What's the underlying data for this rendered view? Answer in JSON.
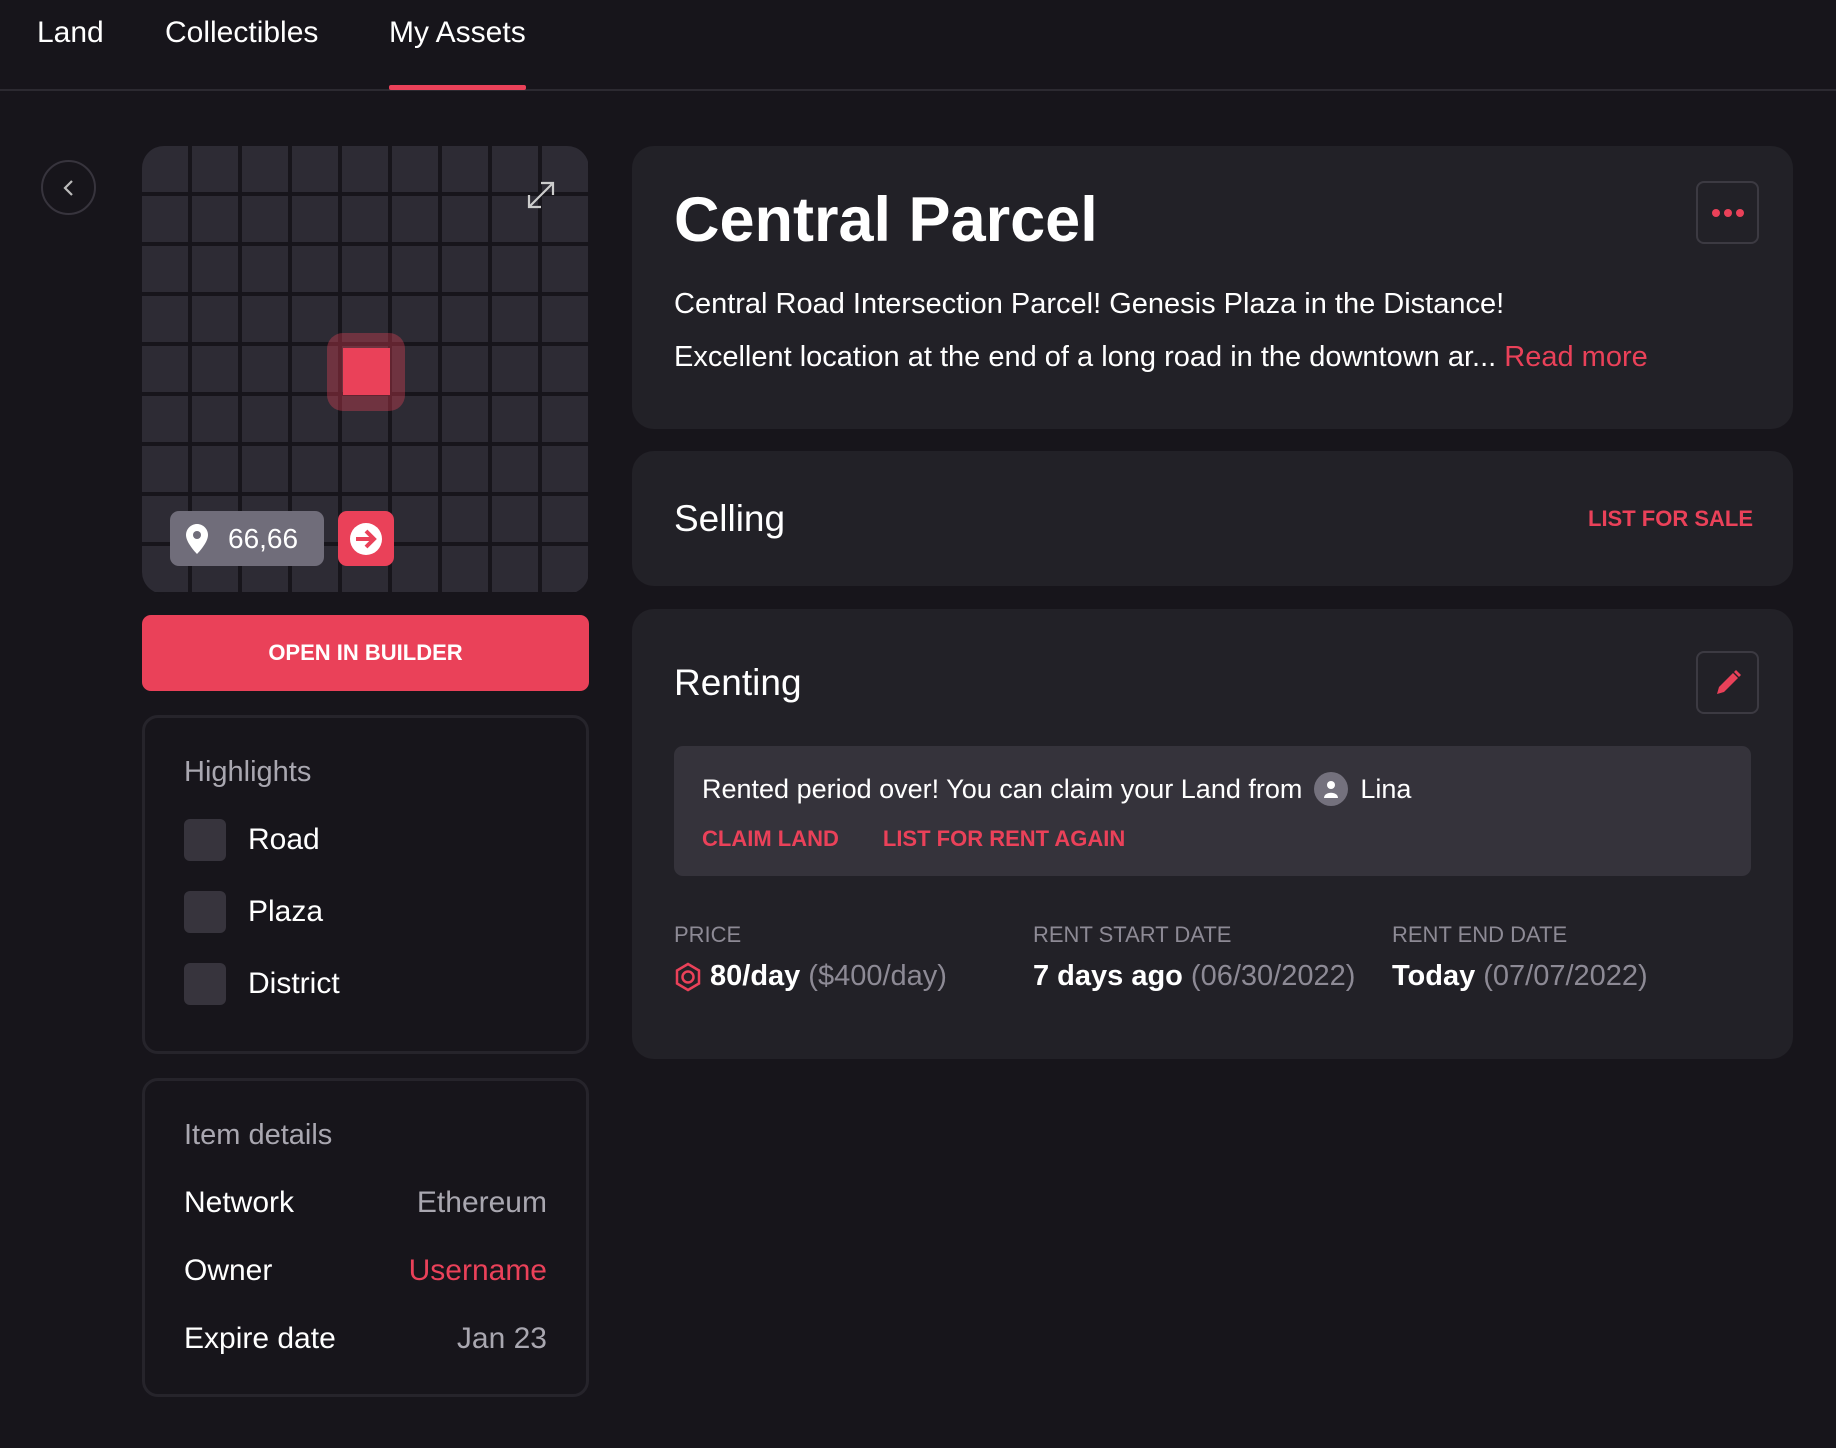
{
  "nav": {
    "tabs": [
      {
        "label": "Land"
      },
      {
        "label": "Collectibles"
      },
      {
        "label": "My Assets",
        "active": true
      }
    ]
  },
  "map": {
    "coordinates": "66,66",
    "selected_parcel": "66,66"
  },
  "builder_button": "OPEN IN BUILDER",
  "highlights": {
    "title": "Highlights",
    "items": [
      {
        "label": "Road"
      },
      {
        "label": "Plaza"
      },
      {
        "label": "District"
      }
    ]
  },
  "item_details": {
    "title": "Item details",
    "rows": [
      {
        "label": "Network",
        "value": "Ethereum"
      },
      {
        "label": "Owner",
        "value": "Username"
      },
      {
        "label": "Expire date",
        "value": "Jan 23"
      }
    ]
  },
  "parcel": {
    "title": "Central Parcel",
    "description_line1": "Central Road Intersection Parcel! Genesis Plaza in the Distance!",
    "description_line2": "Excellent location at the end of a long road in the downtown ar...",
    "read_more": "Read more"
  },
  "selling": {
    "title": "Selling",
    "action": "LIST FOR SALE"
  },
  "renting": {
    "title": "Renting",
    "notice": "Rented period over! You can claim your Land from",
    "tenant": "Lina",
    "claim": "CLAIM LAND",
    "relist": "LIST FOR RENT AGAIN",
    "price": {
      "label": "PRICE",
      "value": "80",
      "unit": "/day",
      "usd": "($400/day)"
    },
    "start": {
      "label": "RENT START DATE",
      "value": "7 days ago",
      "date": "(06/30/2022)"
    },
    "end": {
      "label": "RENT END DATE",
      "value": "Today",
      "date": "(07/07/2022)"
    }
  },
  "colors": {
    "accent": "#ea4159",
    "background": "#17151b",
    "card": "#222127"
  }
}
